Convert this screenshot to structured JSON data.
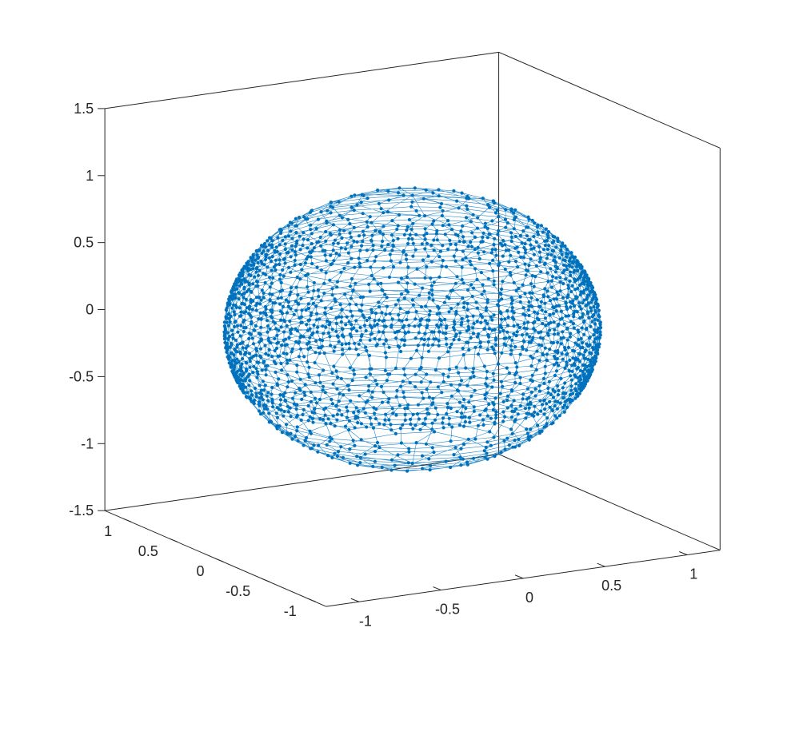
{
  "chart_data": {
    "type": "scatter",
    "subtype": "3d-mesh",
    "title": "",
    "xlabel": "",
    "ylabel": "",
    "zlabel": "",
    "grid": false,
    "colors": {
      "series": "#0072BD",
      "axes": "#262626",
      "background": "#ffffff"
    },
    "axes": {
      "x": {
        "lim": [
          -1.2,
          1.2
        ],
        "ticks": [
          -1,
          -0.5,
          0,
          0.5,
          1
        ],
        "tick_labels": [
          "-1",
          "-0.5",
          "0",
          "0.5",
          "1"
        ]
      },
      "y": {
        "lim": [
          -1.2,
          1.2
        ],
        "ticks": [
          1,
          0.5,
          0,
          -0.5,
          -1
        ],
        "tick_labels": [
          "1",
          "0.5",
          "0",
          "-0.5",
          "-1"
        ]
      },
      "z": {
        "lim": [
          -1.5,
          1.5
        ],
        "ticks": [
          1.5,
          1,
          0.5,
          0,
          -0.5,
          -1,
          -1.5
        ],
        "tick_labels": [
          "1.5",
          "1",
          "0.5",
          "0",
          "-0.5",
          "-1",
          "-1.5"
        ]
      }
    },
    "series": [
      {
        "shape": "sphere",
        "center": [
          0,
          0,
          0
        ],
        "radius": 1,
        "marker": "dot",
        "dense_bands_z": [
          -0.35,
          0.35
        ],
        "gaps_z": [
          -0.5,
          0.1
        ]
      }
    ]
  }
}
